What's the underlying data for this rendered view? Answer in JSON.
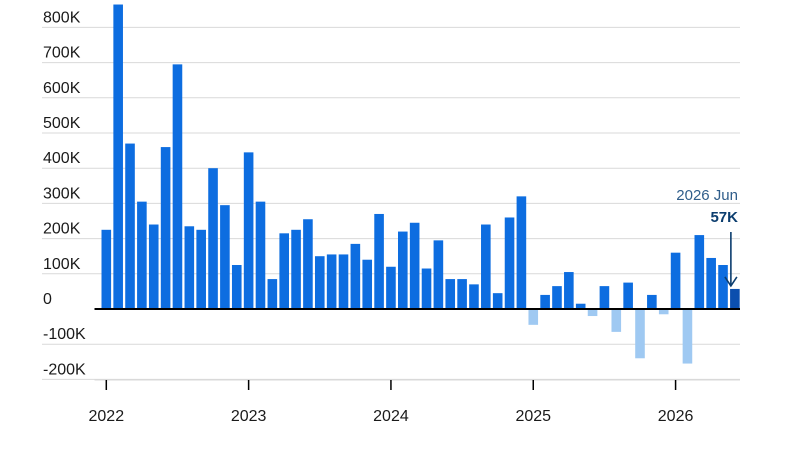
{
  "chart_data": {
    "type": "bar",
    "title": "",
    "xlabel": "",
    "ylabel": "",
    "ylim": [
      -230000,
      850000
    ],
    "y_ticks": [
      {
        "value": 800000,
        "label": "800K"
      },
      {
        "value": 700000,
        "label": "700K"
      },
      {
        "value": 600000,
        "label": "600K"
      },
      {
        "value": 500000,
        "label": "500K"
      },
      {
        "value": 400000,
        "label": "400K"
      },
      {
        "value": 300000,
        "label": "300K"
      },
      {
        "value": 200000,
        "label": "200K"
      },
      {
        "value": 100000,
        "label": "100K"
      },
      {
        "value": 0,
        "label": "0"
      },
      {
        "value": -100000,
        "label": "-100K"
      },
      {
        "value": -200000,
        "label": "-200K"
      }
    ],
    "x_ticks": [
      {
        "date": "2022-01",
        "label": "2022"
      },
      {
        "date": "2023-01",
        "label": "2023"
      },
      {
        "date": "2024-01",
        "label": "2024"
      },
      {
        "date": "2025-01",
        "label": "2025"
      },
      {
        "date": "2026-01",
        "label": "2026"
      }
    ],
    "grid": true,
    "colors": {
      "positive": "#0d6de0",
      "negative": "#9fc9f2",
      "latest": "#0b4fae",
      "annotation_arrow": "#0b3d6e"
    },
    "annotation": {
      "period_label": "2026 Jun",
      "value_label": "57K"
    },
    "bars": [
      {
        "date": "2022-01",
        "value": 225000
      },
      {
        "date": "2022-02",
        "value": 865000
      },
      {
        "date": "2022-03",
        "value": 470000
      },
      {
        "date": "2022-04",
        "value": 305000
      },
      {
        "date": "2022-05",
        "value": 240000
      },
      {
        "date": "2022-06",
        "value": 460000
      },
      {
        "date": "2022-07",
        "value": 695000
      },
      {
        "date": "2022-08",
        "value": 235000
      },
      {
        "date": "2022-09",
        "value": 225000
      },
      {
        "date": "2022-10",
        "value": 400000
      },
      {
        "date": "2022-11",
        "value": 295000
      },
      {
        "date": "2022-12",
        "value": 125000
      },
      {
        "date": "2023-01",
        "value": 445000
      },
      {
        "date": "2023-02",
        "value": 305000
      },
      {
        "date": "2023-03",
        "value": 85000
      },
      {
        "date": "2023-04",
        "value": 215000
      },
      {
        "date": "2023-05",
        "value": 225000
      },
      {
        "date": "2023-06",
        "value": 255000
      },
      {
        "date": "2023-07",
        "value": 150000
      },
      {
        "date": "2023-08",
        "value": 155000
      },
      {
        "date": "2023-09",
        "value": 155000
      },
      {
        "date": "2023-10",
        "value": 185000
      },
      {
        "date": "2023-11",
        "value": 140000
      },
      {
        "date": "2023-12",
        "value": 270000
      },
      {
        "date": "2024-01",
        "value": 120000
      },
      {
        "date": "2024-02",
        "value": 220000
      },
      {
        "date": "2024-03",
        "value": 245000
      },
      {
        "date": "2024-04",
        "value": 115000
      },
      {
        "date": "2024-05",
        "value": 195000
      },
      {
        "date": "2024-06",
        "value": 85000
      },
      {
        "date": "2024-07",
        "value": 85000
      },
      {
        "date": "2024-08",
        "value": 70000
      },
      {
        "date": "2024-09",
        "value": 240000
      },
      {
        "date": "2024-10",
        "value": 45000
      },
      {
        "date": "2024-11",
        "value": 260000
      },
      {
        "date": "2024-12",
        "value": 320000
      },
      {
        "date": "2025-01",
        "value": -45000
      },
      {
        "date": "2025-02",
        "value": 40000
      },
      {
        "date": "2025-03",
        "value": 65000
      },
      {
        "date": "2025-04",
        "value": 105000
      },
      {
        "date": "2025-05",
        "value": 15000
      },
      {
        "date": "2025-06",
        "value": -20000
      },
      {
        "date": "2025-07",
        "value": 65000
      },
      {
        "date": "2025-08",
        "value": -65000
      },
      {
        "date": "2025-09",
        "value": 75000
      },
      {
        "date": "2025-10",
        "value": -140000
      },
      {
        "date": "2025-11",
        "value": 40000
      },
      {
        "date": "2025-12",
        "value": -15000
      },
      {
        "date": "2026-01",
        "value": 160000
      },
      {
        "date": "2026-02",
        "value": -155000
      },
      {
        "date": "2026-03",
        "value": 210000
      },
      {
        "date": "2026-04",
        "value": 145000
      },
      {
        "date": "2026-05",
        "value": 125000
      },
      {
        "date": "2026-06",
        "value": 57000
      }
    ]
  }
}
